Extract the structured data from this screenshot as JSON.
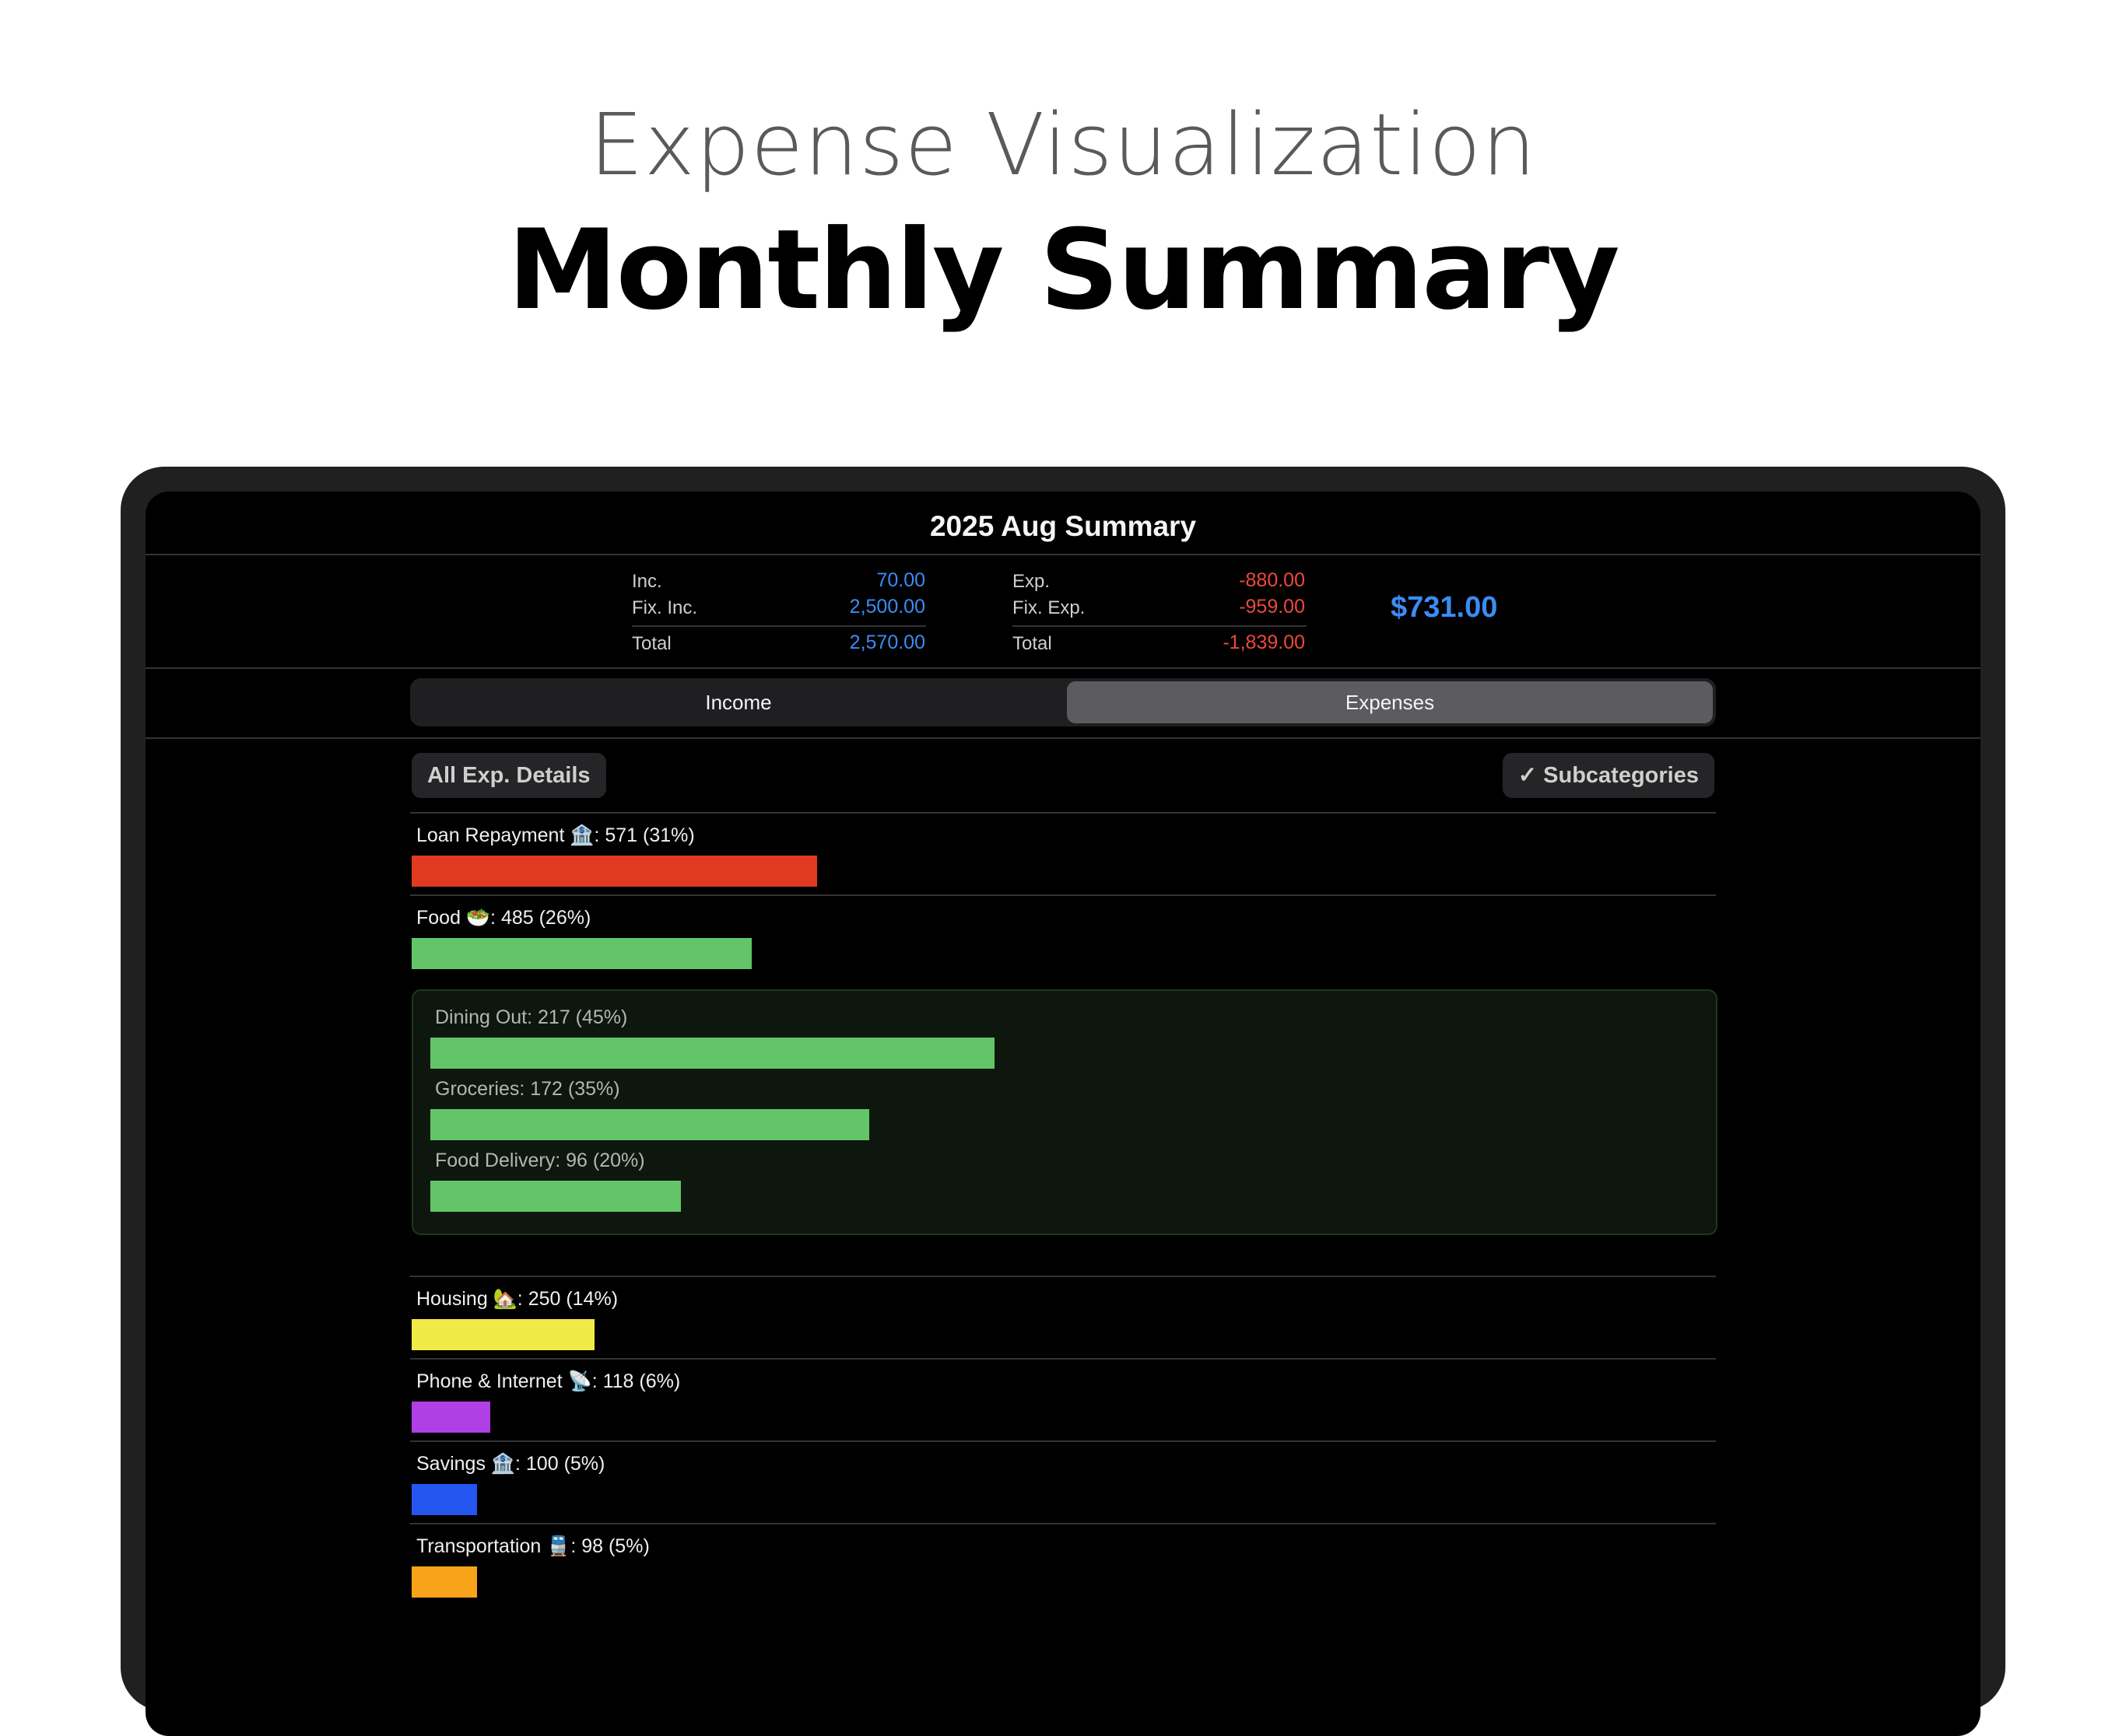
{
  "hero": {
    "subtitle": "Expense Visualization",
    "title": "Monthly Summary"
  },
  "screen": {
    "title": "2025 Aug Summary",
    "summary": {
      "inc_label": "Inc.",
      "inc_value": "70.00",
      "fix_inc_label": "Fix. Inc.",
      "fix_inc_value": "2,500.00",
      "inc_total_label": "Total",
      "inc_total_value": "2,570.00",
      "exp_label": "Exp.",
      "exp_value": "-880.00",
      "fix_exp_label": "Fix. Exp.",
      "fix_exp_value": "-959.00",
      "exp_total_label": "Total",
      "exp_total_value": "-1,839.00",
      "balance": "$731.00"
    },
    "tabs": {
      "income": "Income",
      "expenses": "Expenses",
      "selected": "Expenses"
    },
    "buttons": {
      "all_details": "All Exp. Details",
      "subcategories": "✓ Subcategories"
    },
    "categories": [
      {
        "label": "Loan Repayment 🏦: 571 (31%)",
        "value": 571,
        "percent": 31,
        "color": "#e03a22"
      },
      {
        "label": "Food 🥗: 485 (26%)",
        "value": 485,
        "percent": 26,
        "color": "#63c568"
      },
      {
        "label": "Housing 🏡: 250 (14%)",
        "value": 250,
        "percent": 14,
        "color": "#f0ea46"
      },
      {
        "label": "Phone & Internet 📡: 118 (6%)",
        "value": 118,
        "percent": 6,
        "color": "#b03fe6"
      },
      {
        "label": "Savings 🏦: 100 (5%)",
        "value": 100,
        "percent": 5,
        "color": "#2556f0"
      },
      {
        "label": "Transportation 🚆: 98 (5%)",
        "value": 98,
        "percent": 5,
        "color": "#f7a41b"
      }
    ],
    "food_subcategories": [
      {
        "label": "Dining Out: 217 (45%)",
        "value": 217,
        "percent": 45,
        "color": "#63c568"
      },
      {
        "label": "Groceries: 172 (35%)",
        "value": 172,
        "percent": 35,
        "color": "#63c568"
      },
      {
        "label": "Food Delivery: 96 (20%)",
        "value": 96,
        "percent": 20,
        "color": "#63c568"
      }
    ]
  }
}
